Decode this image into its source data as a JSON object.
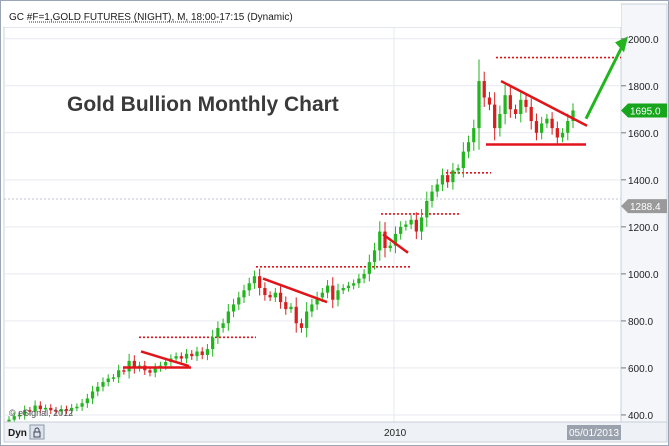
{
  "header": {
    "symbol_info": "GC #F=1,GOLD FUTURES (NIGHT), M, 18:00-17:15 (Dynamic)",
    "watermark": "© eSignal, 2012"
  },
  "footer": {
    "dyn_label": "Dyn",
    "year_label": "2010",
    "date_badge": "05/01/2013"
  },
  "chart_data": {
    "type": "candlestick",
    "title": "Gold Bullion Monthly Chart",
    "ylim": [
      370,
      2050
    ],
    "y_ticks": [
      400,
      600,
      800,
      1000,
      1200,
      1400,
      1600,
      1800,
      2000
    ],
    "y_tick_labels": [
      "400.0",
      "600.0",
      "800.0",
      "1000.0",
      "1200.0",
      "1400.0",
      "1600.0",
      "1800.0",
      "2000.0"
    ],
    "price_badges": [
      {
        "label": "1695.0",
        "value": 1695,
        "color": "#16a51c"
      },
      {
        "label": "1288.4",
        "value": 1288.4,
        "color": "#9a9a9a"
      }
    ],
    "x_label_2010": "2010",
    "up_color": "#22b51e",
    "down_color": "#d81e1e",
    "annotation_color": "#e0141a",
    "arrow_color": "#22b51e",
    "closes": [
      380,
      395,
      400,
      420,
      415,
      440,
      425,
      430,
      420,
      415,
      425,
      418,
      430,
      435,
      450,
      470,
      500,
      520,
      540,
      555,
      560,
      590,
      585,
      630,
      600,
      610,
      590,
      580,
      600,
      610,
      625,
      640,
      650,
      640,
      660,
      650,
      670,
      655,
      680,
      730,
      770,
      790,
      840,
      870,
      900,
      930,
      960,
      990,
      940,
      910,
      900,
      920,
      880,
      850,
      860,
      790,
      770,
      840,
      870,
      900,
      920,
      950,
      890,
      930,
      940,
      950,
      960,
      980,
      1000,
      1050,
      1100,
      1180,
      1110,
      1120,
      1170,
      1200,
      1210,
      1230,
      1180,
      1240,
      1310,
      1350,
      1380,
      1420,
      1390,
      1440,
      1450,
      1520,
      1560,
      1620,
      1820,
      1750,
      1720,
      1620,
      1680,
      1760,
      1700,
      1680,
      1740,
      1710,
      1650,
      1600,
      1640,
      1660,
      1620,
      1580,
      1600,
      1650,
      1695
    ],
    "levels": [
      {
        "value": 730,
        "kind": "dotted"
      },
      {
        "value": 1030,
        "kind": "dotted"
      },
      {
        "value": 1255,
        "kind": "dotted"
      },
      {
        "value": 1430,
        "kind": "dotted"
      },
      {
        "value": 1920,
        "kind": "dotted"
      },
      {
        "value": 1550,
        "kind": "solid"
      }
    ]
  }
}
